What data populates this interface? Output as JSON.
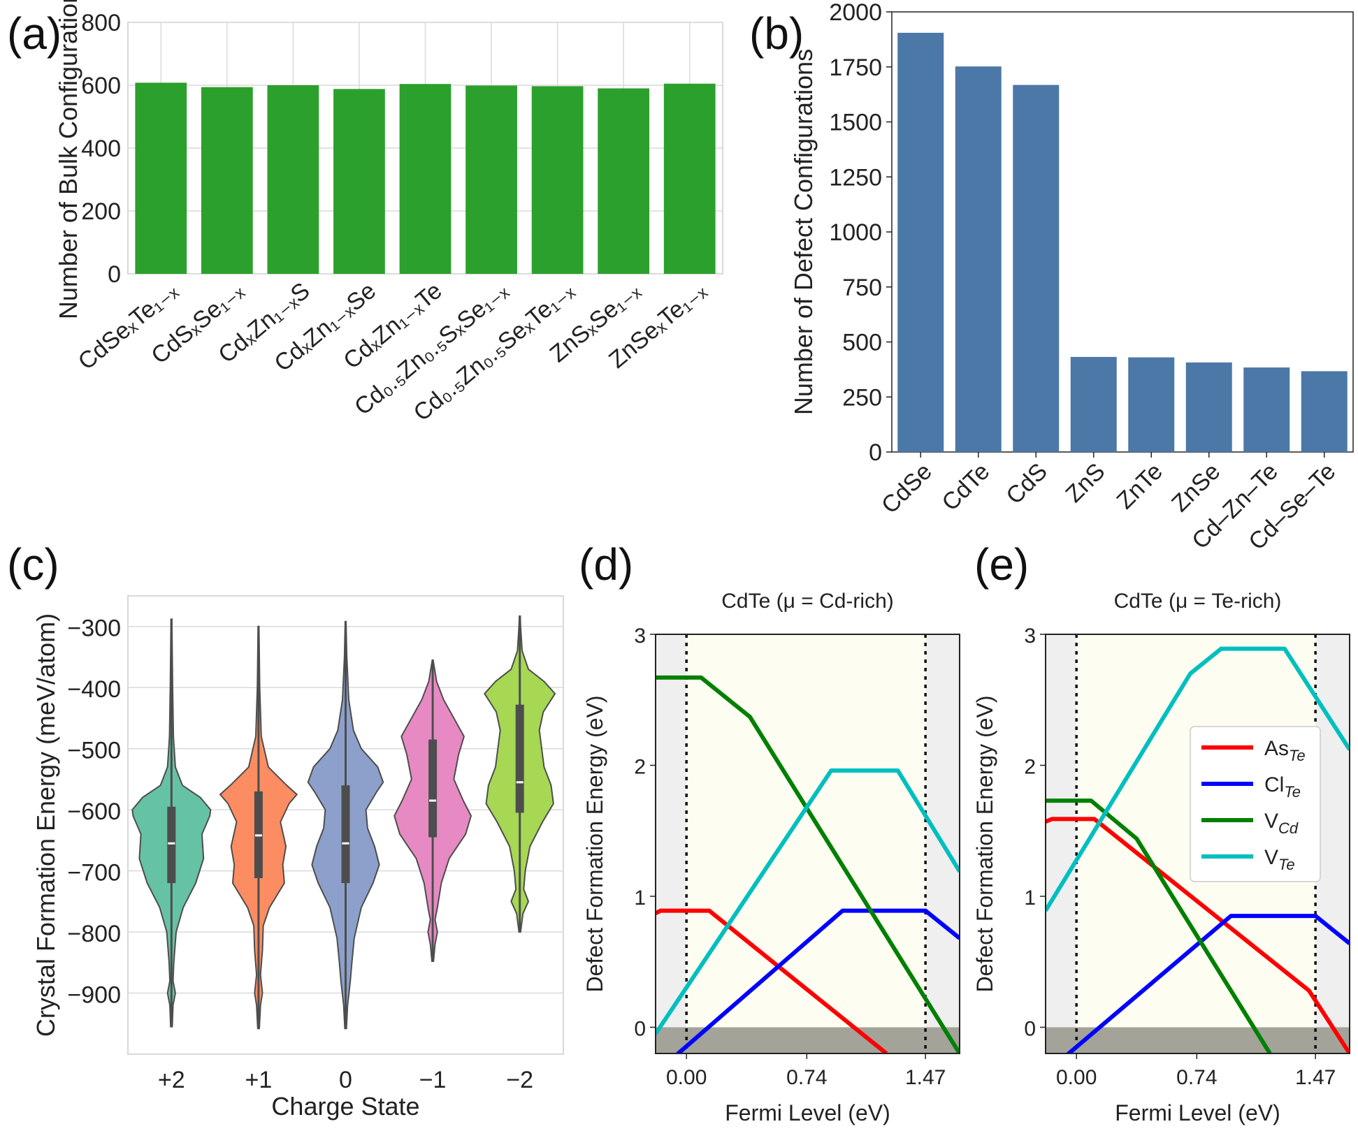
{
  "panel_labels": [
    "(a)",
    "(b)",
    "(c)",
    "(d)",
    "(e)"
  ],
  "chart_data": [
    {
      "panel": "(a)",
      "type": "bar",
      "categories_display": [
        "CdSeₓTe₁₋ₓ",
        "CdSₓSe₁₋ₓ",
        "CdₓZn₁₋ₓS",
        "CdₓZn₁₋ₓSe",
        "CdₓZn₁₋ₓTe",
        "Cd₀.₅Zn₀.₅SₓSe₁₋ₓ",
        "Cd₀.₅Zn₀.₅SeₓTe₁₋ₓ",
        "ZnSₓSe₁₋ₓ",
        "ZnSeₓTe₁₋ₓ"
      ],
      "values": [
        608,
        594,
        600,
        588,
        604,
        599,
        597,
        590,
        605
      ],
      "ylabel": "Number of Bulk Configurations",
      "ylim": [
        0,
        800
      ],
      "yticks": [
        0,
        200,
        400,
        600,
        800
      ],
      "color": "#2ca02c",
      "grid": true
    },
    {
      "panel": "(b)",
      "type": "bar",
      "categories": [
        "CdSe",
        "CdTe",
        "CdS",
        "ZnS",
        "ZnTe",
        "ZnSe",
        "Cd–Zn–Te",
        "Cd–Se–Te"
      ],
      "values": [
        1905,
        1752,
        1668,
        432,
        430,
        407,
        384,
        367
      ],
      "ylabel": "Number of Defect Configurations",
      "ylim": [
        0,
        2000
      ],
      "yticks": [
        0,
        250,
        500,
        750,
        1000,
        1250,
        1500,
        1750,
        2000
      ],
      "color": "#4c78a8",
      "grid": false
    },
    {
      "panel": "(c)",
      "type": "violin",
      "categories": [
        "+2",
        "+1",
        "0",
        "−1",
        "−2"
      ],
      "xlabel": "Charge State",
      "ylabel": "Crystal Formation Energy (meV/atom)",
      "ylim": [
        -1000,
        -250
      ],
      "yticks": [
        -900,
        -800,
        -700,
        -600,
        -500,
        -400,
        -300
      ],
      "ytick_labels": [
        "−900",
        "−800",
        "−700",
        "−600",
        "−500",
        "−400",
        "−300"
      ],
      "series": [
        {
          "name": "+2",
          "color": "#66c2a5",
          "min": -955,
          "q1": -720,
          "median": -655,
          "q3": -595,
          "max": -288,
          "profile": [
            [
              -955,
              0.02
            ],
            [
              -920,
              0.04
            ],
            [
              -900,
              0.1
            ],
            [
              -880,
              0.04
            ],
            [
              -850,
              0.06
            ],
            [
              -800,
              0.12
            ],
            [
              -760,
              0.3
            ],
            [
              -720,
              0.62
            ],
            [
              -680,
              0.82
            ],
            [
              -640,
              0.78
            ],
            [
              -610,
              0.98
            ],
            [
              -600,
              1.0
            ],
            [
              -580,
              0.74
            ],
            [
              -560,
              0.28
            ],
            [
              -530,
              0.1
            ],
            [
              -480,
              0.05
            ],
            [
              -400,
              0.03
            ],
            [
              -288,
              0.01
            ]
          ]
        },
        {
          "name": "+1",
          "color": "#fc8d62",
          "min": -958,
          "q1": -712,
          "median": -642,
          "q3": -570,
          "max": -300,
          "profile": [
            [
              -958,
              0.02
            ],
            [
              -920,
              0.05
            ],
            [
              -900,
              0.1
            ],
            [
              -870,
              0.05
            ],
            [
              -830,
              0.1
            ],
            [
              -790,
              0.12
            ],
            [
              -760,
              0.28
            ],
            [
              -720,
              0.66
            ],
            [
              -690,
              0.62
            ],
            [
              -660,
              0.7
            ],
            [
              -620,
              0.56
            ],
            [
              -590,
              0.78
            ],
            [
              -575,
              0.98
            ],
            [
              -560,
              0.72
            ],
            [
              -530,
              0.25
            ],
            [
              -480,
              0.07
            ],
            [
              -400,
              0.03
            ],
            [
              -300,
              0.01
            ]
          ]
        },
        {
          "name": "0",
          "color": "#8da0cb",
          "min": -958,
          "q1": -720,
          "median": -655,
          "q3": -560,
          "max": -292,
          "profile": [
            [
              -958,
              0.02
            ],
            [
              -920,
              0.05
            ],
            [
              -880,
              0.12
            ],
            [
              -850,
              0.16
            ],
            [
              -810,
              0.22
            ],
            [
              -760,
              0.4
            ],
            [
              -720,
              0.7
            ],
            [
              -690,
              0.86
            ],
            [
              -660,
              0.74
            ],
            [
              -630,
              0.56
            ],
            [
              -600,
              0.52
            ],
            [
              -570,
              0.8
            ],
            [
              -555,
              0.96
            ],
            [
              -530,
              0.82
            ],
            [
              -500,
              0.4
            ],
            [
              -470,
              0.2
            ],
            [
              -420,
              0.08
            ],
            [
              -350,
              0.03
            ],
            [
              -292,
              0.01
            ]
          ]
        },
        {
          "name": "−1",
          "color": "#e78ac3",
          "min": -848,
          "q1": -645,
          "median": -585,
          "q3": -485,
          "max": -355,
          "profile": [
            [
              -848,
              0.02
            ],
            [
              -820,
              0.06
            ],
            [
              -800,
              0.12
            ],
            [
              -780,
              0.06
            ],
            [
              -760,
              0.12
            ],
            [
              -720,
              0.22
            ],
            [
              -680,
              0.42
            ],
            [
              -640,
              0.84
            ],
            [
              -610,
              0.98
            ],
            [
              -585,
              0.78
            ],
            [
              -550,
              0.54
            ],
            [
              -510,
              0.66
            ],
            [
              -480,
              0.8
            ],
            [
              -450,
              0.54
            ],
            [
              -420,
              0.28
            ],
            [
              -390,
              0.1
            ],
            [
              -355,
              0.01
            ]
          ]
        },
        {
          "name": "−2",
          "color": "#a6d854",
          "min": -800,
          "q1": -605,
          "median": -555,
          "q3": -428,
          "max": -283,
          "profile": [
            [
              -800,
              0.02
            ],
            [
              -770,
              0.08
            ],
            [
              -750,
              0.22
            ],
            [
              -730,
              0.1
            ],
            [
              -700,
              0.14
            ],
            [
              -660,
              0.26
            ],
            [
              -620,
              0.58
            ],
            [
              -590,
              0.86
            ],
            [
              -560,
              0.8
            ],
            [
              -530,
              0.62
            ],
            [
              -500,
              0.56
            ],
            [
              -470,
              0.5
            ],
            [
              -440,
              0.6
            ],
            [
              -410,
              0.9
            ],
            [
              -390,
              0.62
            ],
            [
              -370,
              0.22
            ],
            [
              -340,
              0.06
            ],
            [
              -300,
              0.02
            ],
            [
              -283,
              0.01
            ]
          ]
        }
      ]
    },
    {
      "panel": "(d)",
      "type": "line",
      "title": "CdTe (μ = Cd-rich)",
      "xlabel": "Fermi Level (eV)",
      "ylabel": "Defect Formation Energy (eV)",
      "xlim": [
        -0.19,
        1.68
      ],
      "ylim": [
        -0.2,
        3.0
      ],
      "xticks": [
        0,
        0.74,
        1.47
      ],
      "xtick_labels": [
        "0.00",
        "0.74",
        "1.47"
      ],
      "yticks": [
        0,
        1,
        2,
        3
      ],
      "vlines": [
        0,
        1.47
      ],
      "series": [
        {
          "name": "As_Te",
          "color": "#ff0000",
          "x": [
            -0.19,
            -0.16,
            0.14,
            1.23
          ],
          "y": [
            0.87,
            0.89,
            0.89,
            -0.2
          ]
        },
        {
          "name": "Cl_Te",
          "color": "#0000ff",
          "x": [
            -0.19,
            0.96,
            1.47,
            1.68
          ],
          "y": [
            -0.35,
            0.89,
            0.89,
            0.68
          ]
        },
        {
          "name": "V_Cd",
          "color": "#008000",
          "x": [
            -0.19,
            0.09,
            0.39,
            1.68
          ],
          "y": [
            2.67,
            2.67,
            2.37,
            -0.2
          ]
        },
        {
          "name": "V_Te",
          "color": "#00bfbf",
          "x": [
            -0.19,
            0.89,
            1.3,
            1.68
          ],
          "y": [
            -0.05,
            1.96,
            1.96,
            1.19
          ]
        }
      ]
    },
    {
      "panel": "(e)",
      "type": "line",
      "title": "CdTe (μ = Te-rich)",
      "xlabel": "Fermi Level (eV)",
      "ylabel": "Defect Formation Energy (eV)",
      "xlim": [
        -0.19,
        1.68
      ],
      "ylim": [
        -0.2,
        3.0
      ],
      "xticks": [
        0,
        0.74,
        1.47
      ],
      "xtick_labels": [
        "0.00",
        "0.74",
        "1.47"
      ],
      "yticks": [
        0,
        1,
        2,
        3
      ],
      "vlines": [
        0,
        1.47
      ],
      "legend_position": "right",
      "series": [
        {
          "name": "As_Te",
          "color": "#ff0000",
          "x": [
            -0.19,
            -0.15,
            0.11,
            1.43,
            1.68
          ],
          "y": [
            1.57,
            1.59,
            1.59,
            0.28,
            -0.2
          ]
        },
        {
          "name": "Cl_Te",
          "color": "#0000ff",
          "x": [
            -0.19,
            0.95,
            1.47,
            1.68
          ],
          "y": [
            -0.35,
            0.85,
            0.85,
            0.64
          ]
        },
        {
          "name": "V_Cd",
          "color": "#008000",
          "x": [
            -0.19,
            0.09,
            0.37,
            1.19
          ],
          "y": [
            1.73,
            1.73,
            1.44,
            -0.2
          ]
        },
        {
          "name": "V_Te",
          "color": "#00bfbf",
          "x": [
            -0.19,
            0.7,
            0.89,
            1.28,
            1.68
          ],
          "y": [
            0.89,
            2.7,
            2.89,
            2.89,
            2.12
          ]
        }
      ]
    }
  ],
  "legend": [
    {
      "base": "As",
      "sub": "Te",
      "color": "#ff0000"
    },
    {
      "base": "Cl",
      "sub": "Te",
      "color": "#0000ff"
    },
    {
      "base": "V",
      "sub": "Cd",
      "color": "#008000"
    },
    {
      "base": "V",
      "sub": "Te",
      "color": "#00bfbf"
    }
  ]
}
